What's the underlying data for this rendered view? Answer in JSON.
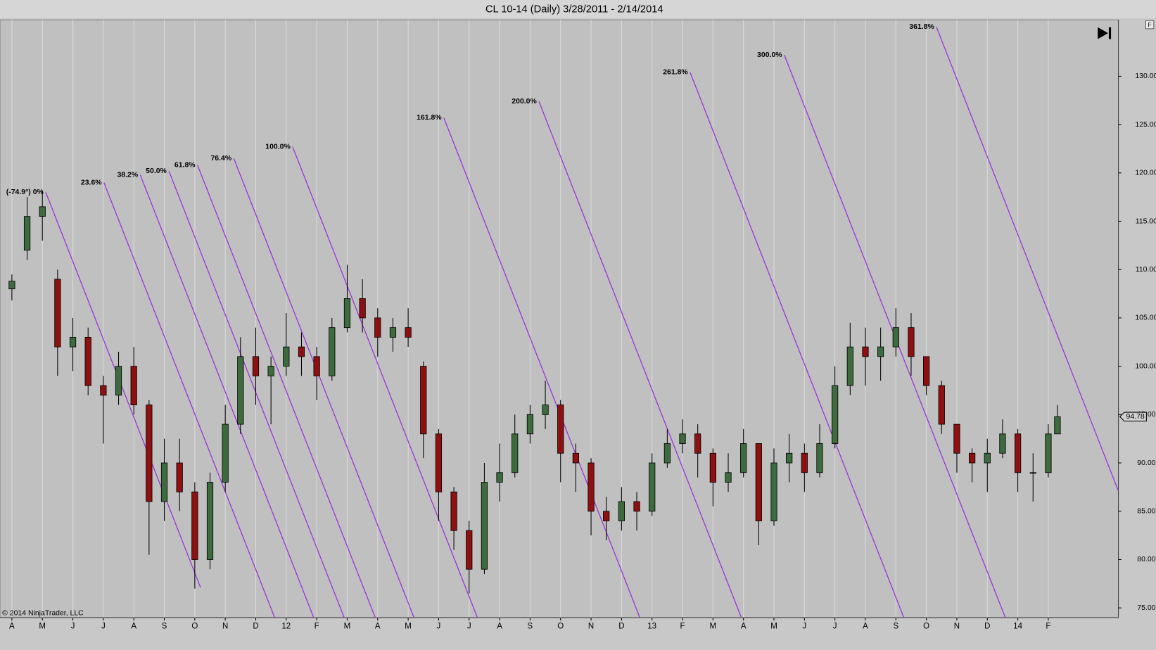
{
  "chart_data": {
    "type": "candlestick",
    "title": "CL 10-14 (Daily)  3/28/2011 - 2/14/2014",
    "copyright": "© 2014 NinjaTrader, LLC",
    "up_color": "#3d6b3d",
    "down_color": "#8e1010",
    "wick_color": "#000000",
    "grid": true,
    "xlim": [
      -0.39,
      36.3
    ],
    "xticks": [
      {
        "value": 0,
        "label": "A"
      },
      {
        "value": 1,
        "label": "M"
      },
      {
        "value": 2,
        "label": "J"
      },
      {
        "value": 3,
        "label": "J"
      },
      {
        "value": 4,
        "label": "A"
      },
      {
        "value": 5,
        "label": "S"
      },
      {
        "value": 6,
        "label": "O"
      },
      {
        "value": 7,
        "label": "N"
      },
      {
        "value": 8,
        "label": "D"
      },
      {
        "value": 9,
        "label": "12"
      },
      {
        "value": 10,
        "label": "F"
      },
      {
        "value": 11,
        "label": "M"
      },
      {
        "value": 12,
        "label": "A"
      },
      {
        "value": 13,
        "label": "M"
      },
      {
        "value": 14,
        "label": "J"
      },
      {
        "value": 15,
        "label": "J"
      },
      {
        "value": 16,
        "label": "A"
      },
      {
        "value": 17,
        "label": "S"
      },
      {
        "value": 18,
        "label": "O"
      },
      {
        "value": 19,
        "label": "N"
      },
      {
        "value": 20,
        "label": "D"
      },
      {
        "value": 21,
        "label": "13"
      },
      {
        "value": 22,
        "label": "F"
      },
      {
        "value": 23,
        "label": "M"
      },
      {
        "value": 24,
        "label": "A"
      },
      {
        "value": 25,
        "label": "M"
      },
      {
        "value": 26,
        "label": "J"
      },
      {
        "value": 27,
        "label": "J"
      },
      {
        "value": 28,
        "label": "A"
      },
      {
        "value": 29,
        "label": "S"
      },
      {
        "value": 30,
        "label": "O"
      },
      {
        "value": 31,
        "label": "N"
      },
      {
        "value": 32,
        "label": "D"
      },
      {
        "value": 33,
        "label": "14"
      },
      {
        "value": 34,
        "label": "F"
      }
    ],
    "ylim": [
      74.0,
      135.6
    ],
    "yticks": [
      {
        "value": 75,
        "label": "75.00"
      },
      {
        "value": 80,
        "label": "80.00"
      },
      {
        "value": 85,
        "label": "85.00"
      },
      {
        "value": 90,
        "label": "90.00"
      },
      {
        "value": 95,
        "label": "95.00"
      },
      {
        "value": 100,
        "label": "100.00"
      },
      {
        "value": 105,
        "label": "105.00"
      },
      {
        "value": 110,
        "label": "110.00"
      },
      {
        "value": 115,
        "label": "115.00"
      },
      {
        "value": 120,
        "label": "120.00"
      },
      {
        "value": 125,
        "label": "125.00"
      },
      {
        "value": 130,
        "label": "130.00"
      }
    ],
    "last_price": 94.78,
    "x": [
      0,
      0.5,
      1,
      1.5,
      2,
      2.5,
      3,
      3.5,
      4,
      4.5,
      5,
      5.5,
      6,
      6.5,
      7,
      7.5,
      8,
      8.5,
      9,
      9.5,
      10,
      10.5,
      11,
      11.5,
      12,
      12.5,
      13,
      13.5,
      14,
      14.5,
      15,
      15.5,
      16,
      16.5,
      17,
      17.5,
      18,
      18.5,
      19,
      19.5,
      20,
      20.5,
      21,
      21.5,
      22,
      22.5,
      23,
      23.5,
      24,
      24.5,
      25,
      25.5,
      26,
      26.5,
      27,
      27.5,
      28,
      28.5,
      29,
      29.5,
      30,
      30.5,
      31,
      31.5,
      32,
      32.5,
      33,
      33.5,
      34,
      34.3
    ],
    "ohlc": [
      [
        108,
        109.5,
        106.8,
        108.8
      ],
      [
        112,
        117.5,
        111,
        115.5
      ],
      [
        115.5,
        118.2,
        113,
        116.5
      ],
      [
        109,
        110,
        99,
        102
      ],
      [
        102,
        105,
        99.5,
        103
      ],
      [
        103,
        104,
        97,
        98
      ],
      [
        98,
        99,
        92,
        97
      ],
      [
        97,
        101.5,
        96,
        100
      ],
      [
        100,
        102,
        95,
        96
      ],
      [
        96,
        96.5,
        80.5,
        86
      ],
      [
        86,
        92.5,
        84,
        90
      ],
      [
        90,
        92.5,
        85,
        87
      ],
      [
        87,
        88,
        77,
        80
      ],
      [
        80,
        89,
        79,
        88
      ],
      [
        88,
        96,
        87,
        94
      ],
      [
        94,
        103,
        93,
        101
      ],
      [
        101,
        104,
        96,
        99
      ],
      [
        99,
        101,
        94,
        100
      ],
      [
        100,
        105.5,
        99,
        102
      ],
      [
        102,
        103.5,
        99,
        101
      ],
      [
        101,
        102,
        96.5,
        99
      ],
      [
        99,
        105,
        98.5,
        104
      ],
      [
        104,
        110.5,
        103.5,
        107
      ],
      [
        107,
        109,
        103.5,
        105
      ],
      [
        105,
        106,
        101,
        103
      ],
      [
        103,
        105,
        101.5,
        104
      ],
      [
        104,
        106,
        102,
        103
      ],
      [
        100,
        100.5,
        90.5,
        93
      ],
      [
        93,
        93.5,
        84,
        87
      ],
      [
        87,
        87.5,
        81,
        83
      ],
      [
        83,
        84,
        76.5,
        79
      ],
      [
        79,
        90,
        78.5,
        88
      ],
      [
        88,
        92,
        86,
        89
      ],
      [
        89,
        95,
        88.5,
        93
      ],
      [
        93,
        96,
        92,
        95
      ],
      [
        95,
        98.5,
        93.5,
        96
      ],
      [
        96,
        96.5,
        88,
        91
      ],
      [
        91,
        92,
        87,
        90
      ],
      [
        90,
        90.5,
        82.5,
        85
      ],
      [
        85,
        86.5,
        82,
        84
      ],
      [
        84,
        87.5,
        83,
        86
      ],
      [
        86,
        87,
        83,
        85
      ],
      [
        85,
        91,
        84.5,
        90
      ],
      [
        90,
        93.5,
        89.5,
        92
      ],
      [
        92,
        94.5,
        91,
        93
      ],
      [
        93,
        94,
        88.5,
        91
      ],
      [
        91,
        91.5,
        85.5,
        88
      ],
      [
        88,
        91,
        87,
        89
      ],
      [
        89,
        93.5,
        88.5,
        92
      ],
      [
        92,
        92,
        81.5,
        84
      ],
      [
        84,
        91.5,
        83.5,
        90
      ],
      [
        90,
        93,
        88,
        91
      ],
      [
        91,
        92,
        87,
        89
      ],
      [
        89,
        94,
        88.5,
        92
      ],
      [
        92,
        100,
        91.5,
        98
      ],
      [
        98,
        104.5,
        97,
        102
      ],
      [
        102,
        104,
        98,
        101
      ],
      [
        101,
        104,
        98.5,
        102
      ],
      [
        102,
        106,
        101,
        104
      ],
      [
        104,
        105.5,
        99,
        101
      ],
      [
        101,
        101,
        97,
        98
      ],
      [
        98,
        98.5,
        93,
        94
      ],
      [
        94,
        94,
        89,
        91
      ],
      [
        91,
        91.5,
        88,
        90
      ],
      [
        90,
        92.5,
        87,
        91
      ],
      [
        91,
        94.5,
        90.5,
        93
      ],
      [
        93,
        93.5,
        87,
        89
      ],
      [
        89,
        91,
        86,
        89
      ],
      [
        89,
        94,
        88.5,
        93
      ],
      [
        93,
        96,
        93,
        94.78
      ]
    ],
    "fib_color": "#9a2fd6",
    "fib_lines": [
      {
        "label": "(-74.9°) 0%",
        "x": [
          1.11,
          6.19
        ],
        "y": [
          118.0,
          77.1
        ]
      },
      {
        "label": "23.6%",
        "x": [
          3.02,
          8.62
        ],
        "y": [
          119.0,
          74.0
        ]
      },
      {
        "label": "38.2%",
        "x": [
          4.21,
          9.9
        ],
        "y": [
          119.8,
          74.0
        ]
      },
      {
        "label": "50.0%",
        "x": [
          5.15,
          10.9
        ],
        "y": [
          120.2,
          74.0
        ]
      },
      {
        "label": "61.8%",
        "x": [
          6.09,
          11.92
        ],
        "y": [
          120.8,
          74.0
        ]
      },
      {
        "label": "76.4%",
        "x": [
          7.28,
          13.19
        ],
        "y": [
          121.5,
          74.0
        ]
      },
      {
        "label": "100.0%",
        "x": [
          9.21,
          15.27
        ],
        "y": [
          122.7,
          74.0
        ]
      },
      {
        "label": "161.8%",
        "x": [
          14.17,
          20.6
        ],
        "y": [
          125.7,
          74.0
        ]
      },
      {
        "label": "200.0%",
        "x": [
          17.29,
          23.93
        ],
        "y": [
          127.4,
          74.0
        ]
      },
      {
        "label": "261.8%",
        "x": [
          22.25,
          29.26
        ],
        "y": [
          130.4,
          74.0
        ]
      },
      {
        "label": "300.0%",
        "x": [
          25.34,
          32.59
        ],
        "y": [
          132.2,
          74.0
        ]
      },
      {
        "label": "361.8%",
        "x": [
          30.33,
          36.3
        ],
        "y": [
          135.1,
          87.1
        ]
      }
    ]
  }
}
